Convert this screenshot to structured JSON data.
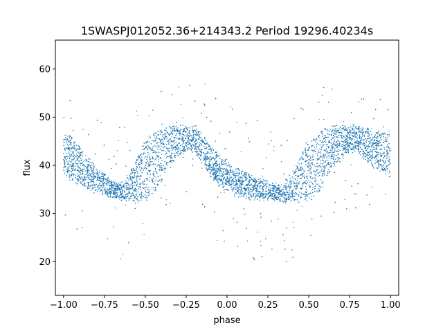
{
  "chart_data": {
    "type": "scatter",
    "title": "1SWASPJ012052.36+214343.2 Period 19296.40234s",
    "xlabel": "phase",
    "ylabel": "flux",
    "xlim": [
      -1.05,
      1.05
    ],
    "ylim": [
      13,
      66
    ],
    "xticks": [
      -1.0,
      -0.75,
      -0.5,
      -0.25,
      0.0,
      0.25,
      0.5,
      0.75,
      1.0
    ],
    "xtick_labels": [
      "−1.00",
      "−0.75",
      "−0.50",
      "−0.25",
      "0.00",
      "0.25",
      "0.50",
      "0.75",
      "1.00"
    ],
    "yticks": [
      20,
      30,
      40,
      50,
      60
    ],
    "ytick_labels": [
      "20",
      "30",
      "40",
      "50",
      "60"
    ],
    "grid": false,
    "point_color": "#1f77b4",
    "series": [
      {
        "phase": [
          -1.0,
          -0.95,
          -0.9,
          -0.85,
          -0.8,
          -0.75,
          -0.7,
          -0.65,
          -0.6,
          -0.55,
          -0.5,
          -0.45,
          -0.4,
          -0.35,
          -0.3,
          -0.25,
          -0.2,
          -0.15,
          -0.1,
          -0.05,
          0.0,
          0.05,
          0.1,
          0.15,
          0.2,
          0.25,
          0.3,
          0.35,
          0.4,
          0.45,
          0.5,
          0.55,
          0.6,
          0.65,
          0.7,
          0.75,
          0.8,
          0.85,
          0.9,
          0.95,
          1.0
        ],
        "flux_upper": [
          47,
          45.5,
          43.5,
          41.5,
          39.5,
          38,
          36.5,
          36,
          38,
          42,
          45,
          46.5,
          47.5,
          48,
          48,
          48,
          48,
          46,
          44,
          42,
          40.5,
          39.5,
          38.5,
          37.5,
          37,
          36.5,
          36,
          36,
          38,
          42,
          45,
          46.5,
          47.5,
          48,
          48,
          48,
          48,
          47.5,
          47,
          46.5,
          46
        ],
        "flux_lower": [
          39,
          37,
          36,
          35,
          34.5,
          34,
          33.5,
          33,
          32.5,
          32.5,
          33,
          34,
          37,
          40,
          42,
          43,
          43,
          40.5,
          38,
          36,
          34.5,
          34,
          33.5,
          33,
          33,
          33,
          33,
          32.5,
          32.5,
          32.5,
          33,
          34,
          37,
          40,
          42,
          43,
          43,
          41,
          39.5,
          38.5,
          38
        ]
      }
    ]
  }
}
